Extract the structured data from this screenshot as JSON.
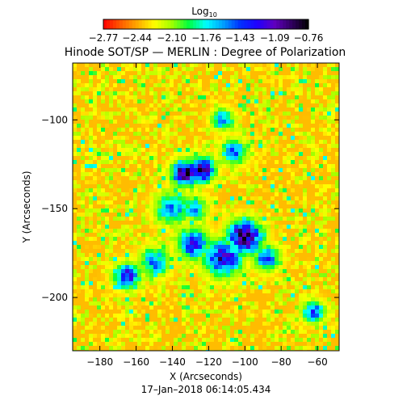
{
  "chart_data": {
    "type": "heatmap",
    "title": "Hinode SOT/SP — MERLIN : Degree of Polarization",
    "xlabel": "X (Arcseconds)",
    "ylabel": "Y (Arcseconds)",
    "timestamp": "17–Jan–2018 06:14:05.434",
    "xlim": [
      -195,
      -48
    ],
    "ylim": [
      -230,
      -68
    ],
    "x_ticks": [
      -180,
      -160,
      -140,
      -120,
      -100,
      -80,
      -60
    ],
    "x_tick_labels": [
      "−180",
      "−160",
      "−140",
      "−120",
      "−100",
      "−80",
      "−60"
    ],
    "y_ticks": [
      -100,
      -150,
      -200
    ],
    "y_tick_labels": [
      "−100",
      "−150",
      "−200"
    ],
    "colorbar": {
      "label_base": "Log",
      "label_sub": "10",
      "range": [
        -2.77,
        -0.76
      ],
      "ticks": [
        -2.77,
        -2.44,
        -2.1,
        -1.76,
        -1.43,
        -1.09,
        -0.76
      ],
      "tick_labels": [
        "−2.77",
        "−2.44",
        "−2.10",
        "−1.76",
        "−1.43",
        "−1.09",
        "−0.76"
      ],
      "colors": [
        "#ff0000",
        "#ff5a00",
        "#ffaa00",
        "#ffff00",
        "#a0ff00",
        "#00ff40",
        "#00ffff",
        "#00a0ff",
        "#0030ff",
        "#2000ff",
        "#6000c0",
        "#300060",
        "#000000"
      ]
    },
    "background_color": "#ff5a00",
    "active_regions": [
      {
        "x": -133,
        "y": -130,
        "r": 7,
        "peak": -0.85
      },
      {
        "x": -124,
        "y": -128,
        "r": 7,
        "peak": -0.9
      },
      {
        "x": -100,
        "y": -166,
        "r": 9,
        "peak": -0.78
      },
      {
        "x": -112,
        "y": -178,
        "r": 10,
        "peak": -1.1
      },
      {
        "x": -128,
        "y": -170,
        "r": 9,
        "peak": -1.3
      },
      {
        "x": -140,
        "y": -150,
        "r": 9,
        "peak": -1.5
      },
      {
        "x": -112,
        "y": -100,
        "r": 6,
        "peak": -1.5
      },
      {
        "x": -106,
        "y": -118,
        "r": 7,
        "peak": -1.4
      },
      {
        "x": -165,
        "y": -188,
        "r": 7,
        "peak": -1.2
      },
      {
        "x": -150,
        "y": -180,
        "r": 8,
        "peak": -1.5
      },
      {
        "x": -88,
        "y": -178,
        "r": 7,
        "peak": -1.4
      },
      {
        "x": -62,
        "y": -208,
        "r": 6,
        "peak": -1.4
      },
      {
        "x": -128,
        "y": -150,
        "r": 7,
        "peak": -1.6
      }
    ]
  }
}
